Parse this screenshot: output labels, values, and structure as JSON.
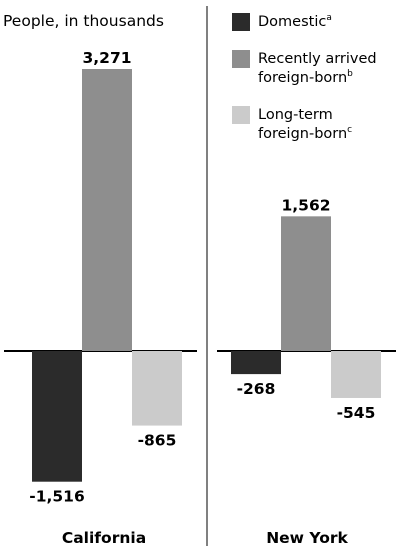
{
  "chart_data": {
    "type": "bar",
    "ylabel": "People, in thousands",
    "categories": [
      "California",
      "New York"
    ],
    "series": [
      {
        "name": "Domestic",
        "superscript": "a",
        "color": "#2b2b2b",
        "values": [
          -1516,
          -268
        ],
        "labels": [
          "-1,516",
          "-268"
        ]
      },
      {
        "name": "Recently arrived foreign-born",
        "superscript": "b",
        "color": "#8e8e8e",
        "values": [
          3271,
          1562
        ],
        "labels": [
          "3,271",
          "1,562"
        ]
      },
      {
        "name": "Long-term foreign-born",
        "superscript": "c",
        "color": "#cbcbcb",
        "values": [
          -865,
          -545
        ],
        "labels": [
          "-865",
          "-545"
        ]
      }
    ],
    "ylim": [
      -1800,
      3600
    ],
    "grid": false,
    "legend_position": "top-right"
  }
}
